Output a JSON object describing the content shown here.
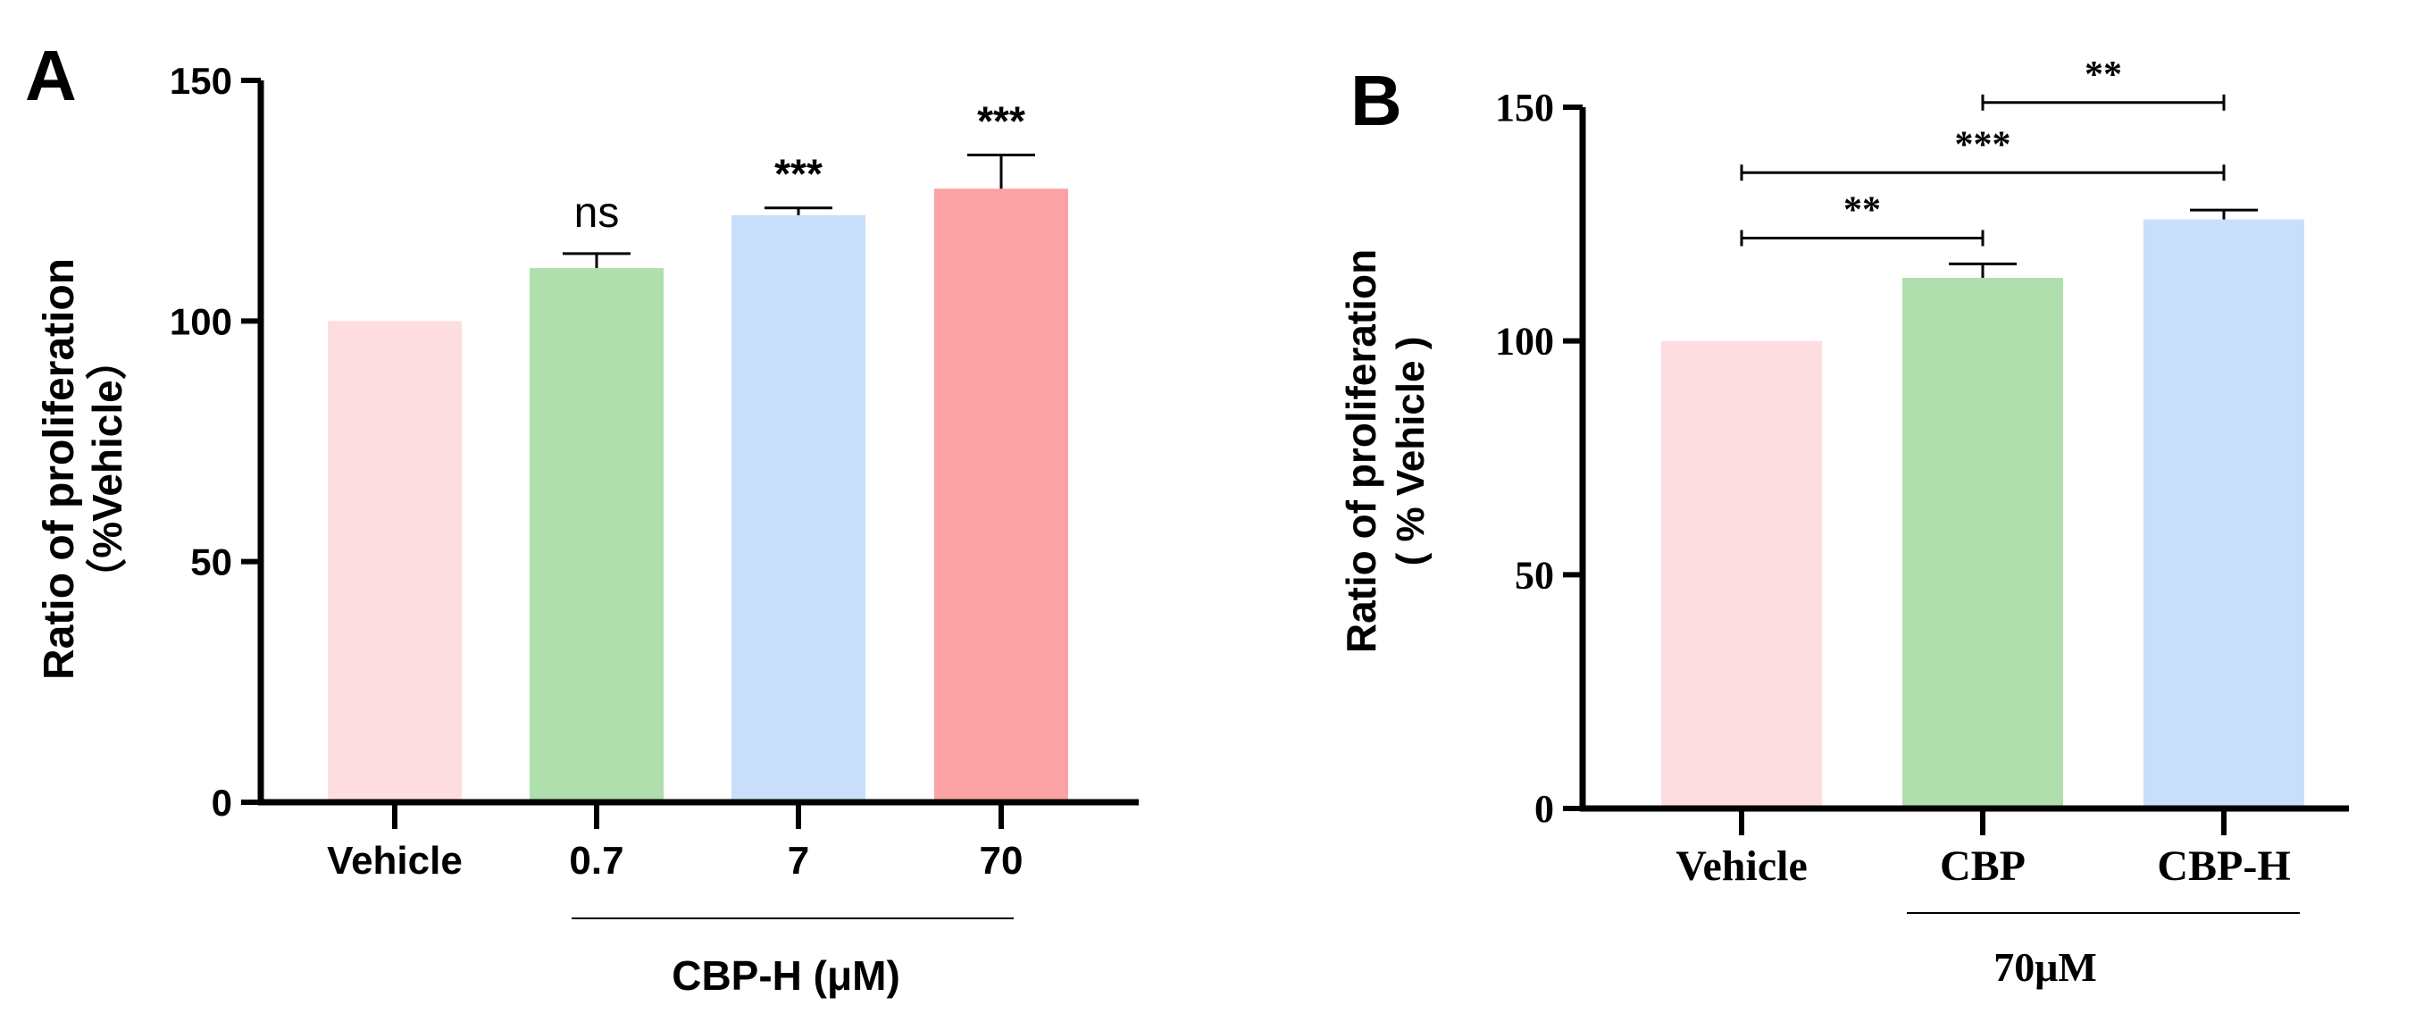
{
  "chart_data": [
    {
      "panel": "A",
      "type": "bar",
      "ylabel_line1": "Ratio of proliferation",
      "ylabel_line2": "（%Vehicle）",
      "xlabel": "CBP-H (μM)",
      "ylim": [
        0,
        150
      ],
      "yticks": [
        "0",
        "50",
        "100",
        "150"
      ],
      "categories": [
        "Vehicle",
        "0.7",
        "7",
        "70"
      ],
      "values": [
        100,
        111,
        122,
        127.5
      ],
      "errors": [
        0,
        3,
        1.5,
        7
      ],
      "colors": [
        "#fddde0",
        "#afdfac",
        "#c9defa",
        "#fba3a4"
      ],
      "significance": [
        "",
        "ns",
        "***",
        "***"
      ]
    },
    {
      "panel": "B",
      "type": "bar",
      "ylabel_line1": "Ratio of proliferation",
      "ylabel_line2": "( % Vehicle )",
      "xlabel": "70μM",
      "ylim": [
        0,
        150
      ],
      "yticks": [
        "0",
        "50",
        "100",
        "150"
      ],
      "categories": [
        "Vehicle",
        "CBP",
        "CBP-H"
      ],
      "values": [
        100,
        113.5,
        126
      ],
      "errors": [
        0,
        3,
        2
      ],
      "colors": [
        "#fddde0",
        "#afdfac",
        "#c9defa"
      ],
      "comparisons": [
        {
          "from": 0,
          "to": 1,
          "label": "**",
          "y": 122
        },
        {
          "from": 0,
          "to": 2,
          "label": "***",
          "y": 136
        },
        {
          "from": 1,
          "to": 2,
          "label": "**",
          "y": 151
        }
      ]
    }
  ]
}
